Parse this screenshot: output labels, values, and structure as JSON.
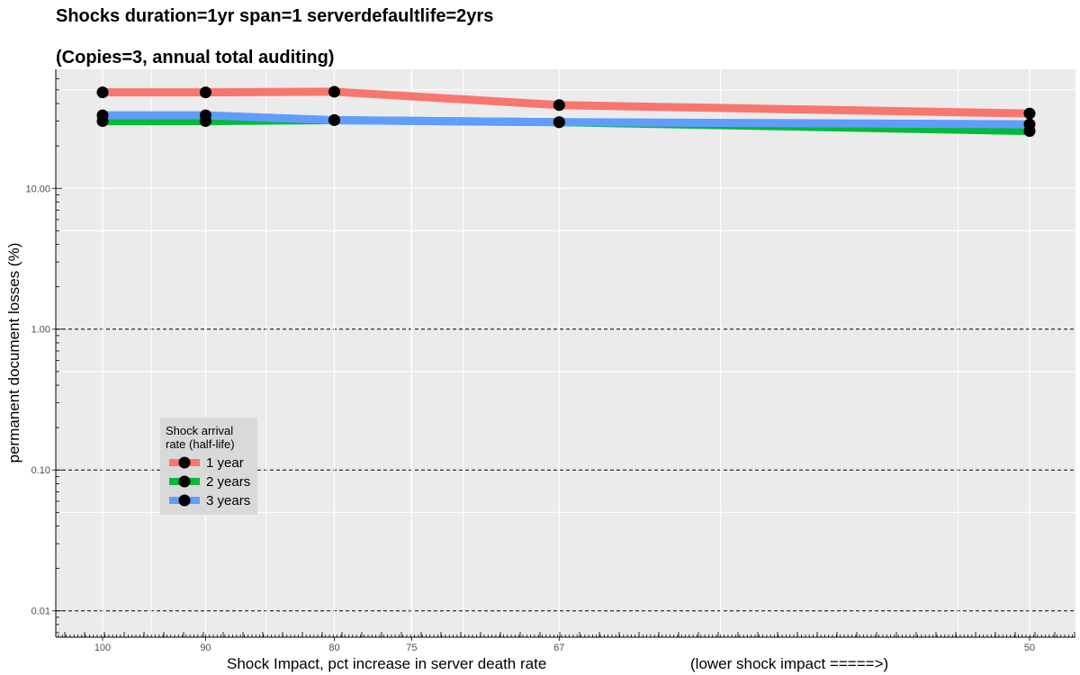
{
  "chart_data": {
    "type": "line",
    "title": "Shocks duration=1yr span=1 serverdefaultlife=2yrs",
    "subtitle": "(Copies=3, annual total auditing)",
    "xlabel": "Shock Impact, pct increase in server death rate",
    "xlabel_note": "(lower shock impact =====>)",
    "ylabel": "permanent document losses (%)",
    "x_scale": "reciprocal",
    "xlim": [
      100,
      50
    ],
    "x_ticks": [
      100,
      90,
      80,
      75,
      67,
      50
    ],
    "x_tick_labels": [
      "100",
      "90",
      "80",
      "75",
      "67",
      "50"
    ],
    "y_scale": "log",
    "ylim": [
      0.0065,
      70
    ],
    "y_ticks": [
      0.01,
      0.1,
      1,
      10
    ],
    "y_tick_labels": [
      "0.01",
      "0.10",
      "1.00",
      "10.00"
    ],
    "grid": true,
    "legend_position": "left",
    "legend": {
      "title_line1": "Shock arrival",
      "title_line2": "rate (half-life)"
    },
    "x": [
      100,
      90,
      80,
      67,
      50
    ],
    "series": [
      {
        "name": "1 year",
        "color": "#F8766D",
        "values": [
          48,
          48,
          48.5,
          39,
          34
        ]
      },
      {
        "name": "2 years",
        "color": "#00BA38",
        "values": [
          30,
          30,
          30.5,
          29.5,
          25.5
        ]
      },
      {
        "name": "3 years",
        "color": "#619CFF",
        "values": [
          33,
          33,
          30.5,
          29.5,
          28.5
        ]
      }
    ]
  }
}
